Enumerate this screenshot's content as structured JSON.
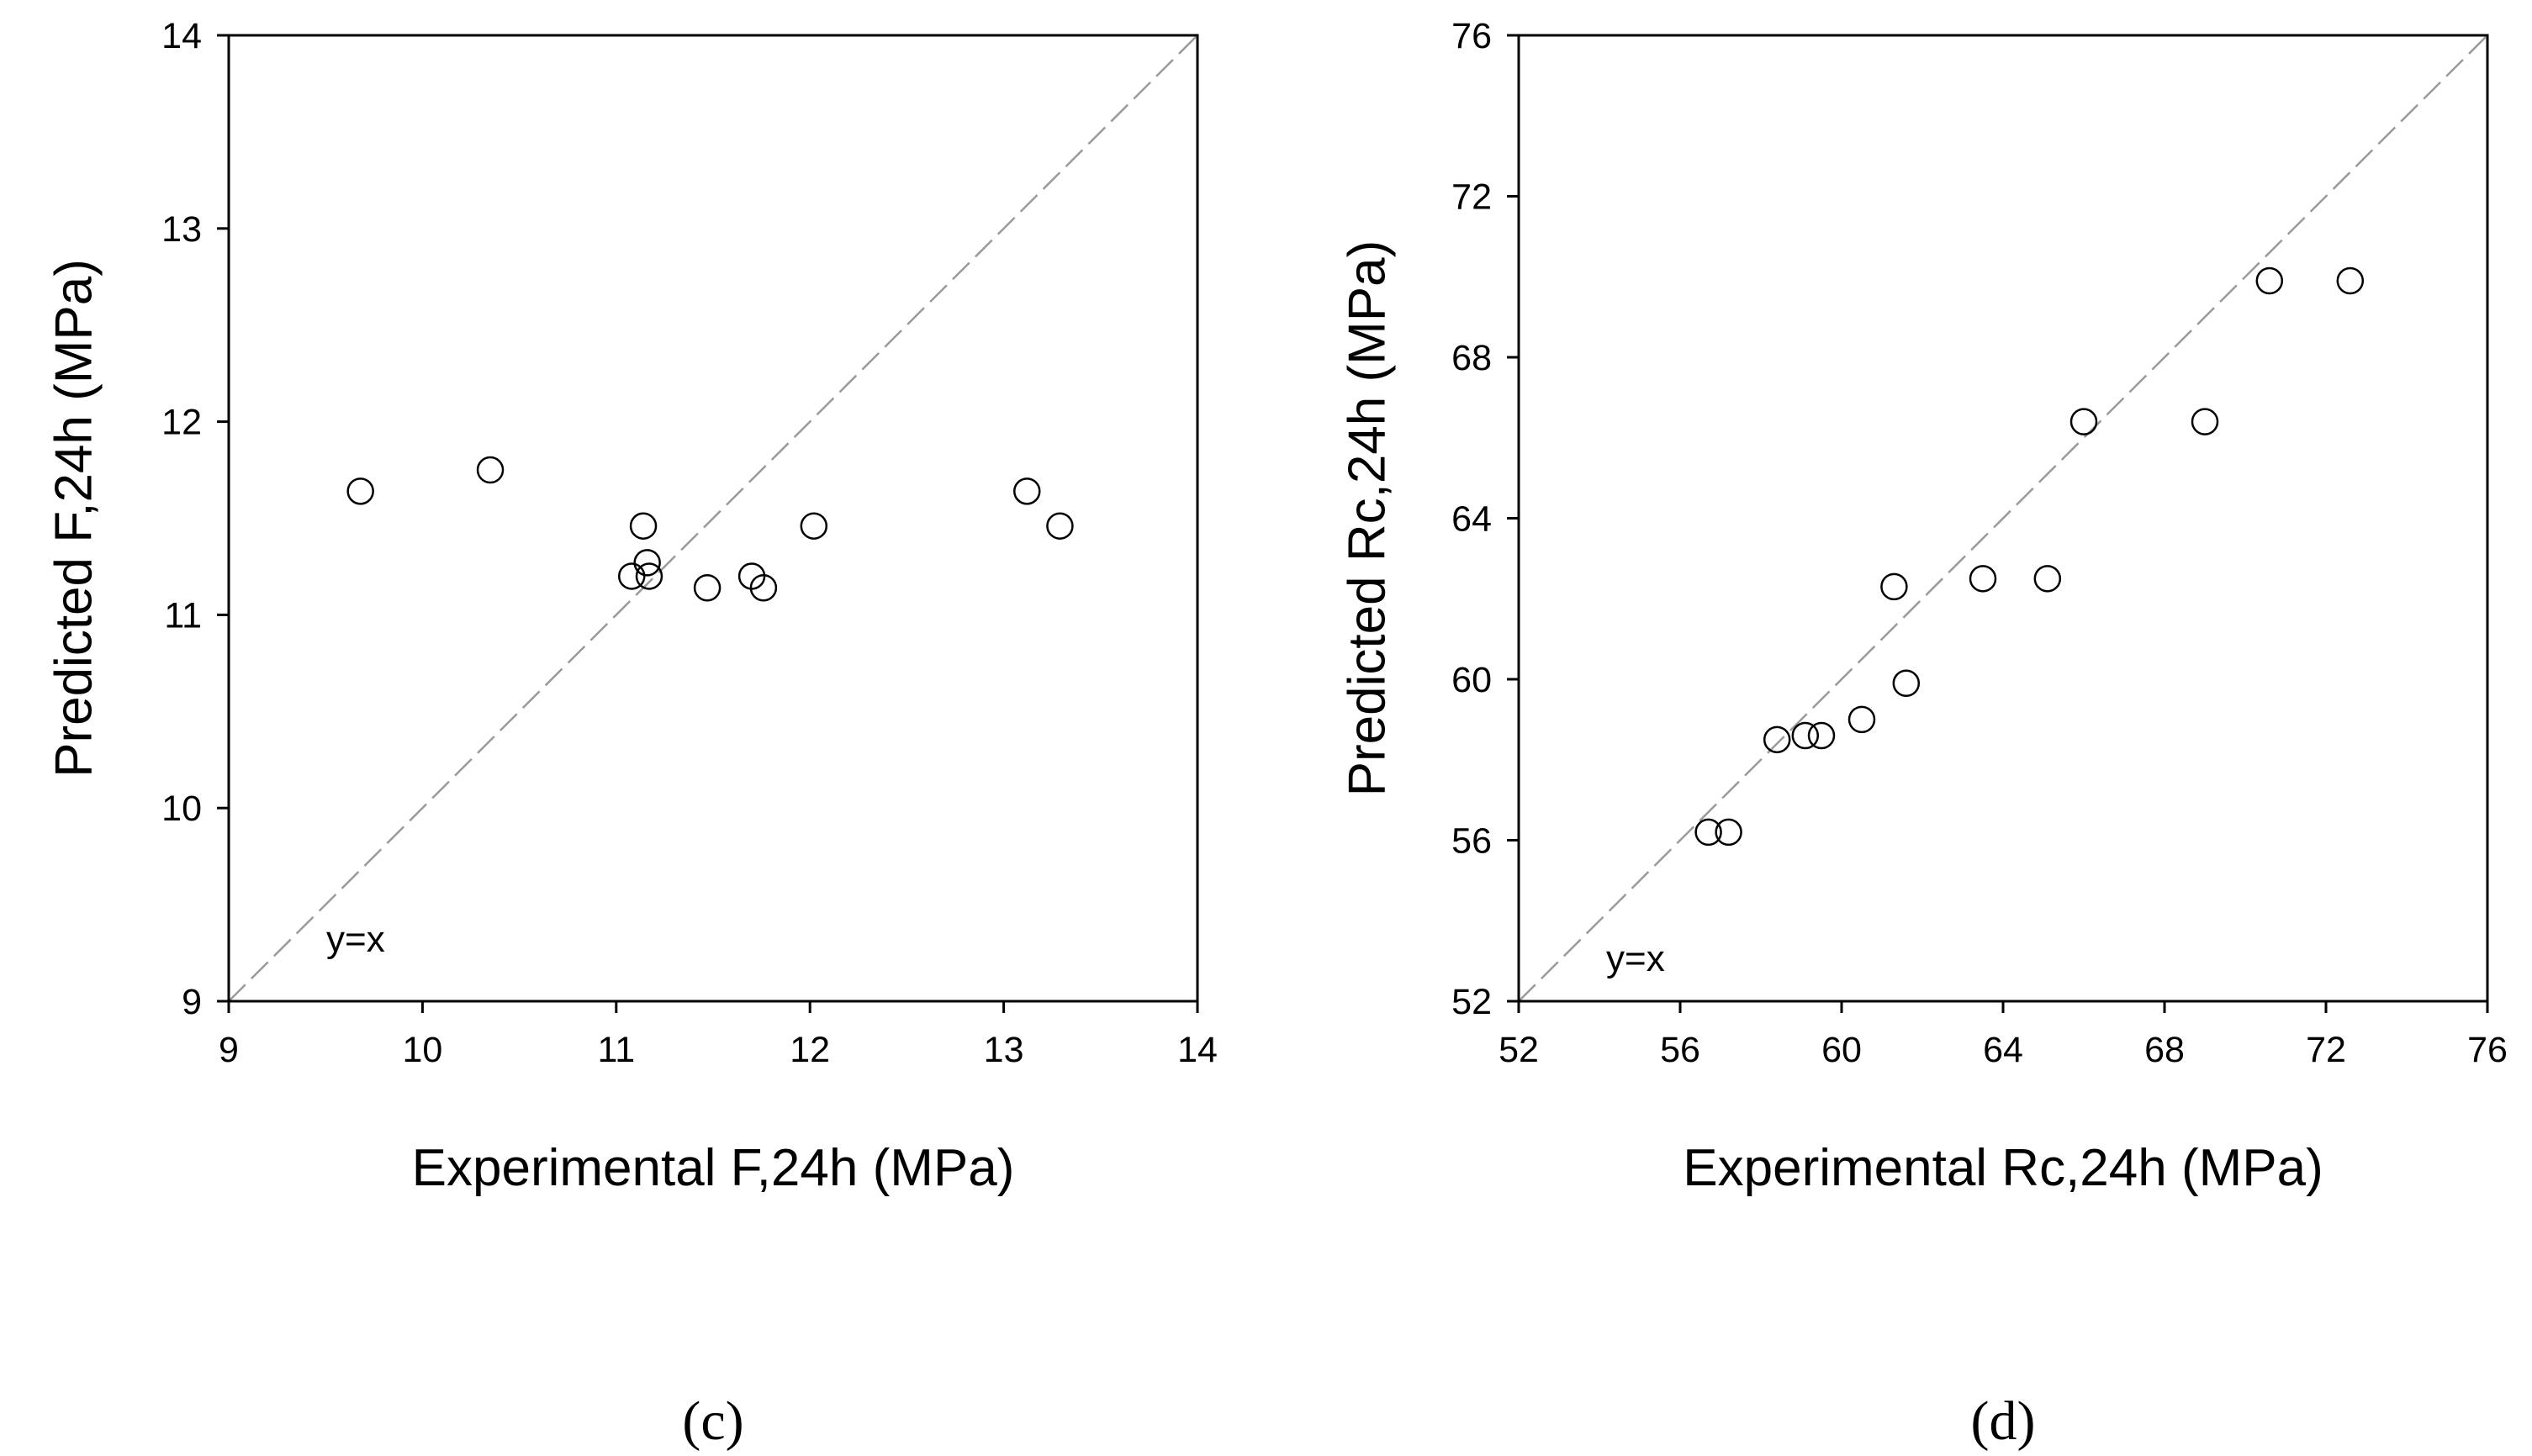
{
  "chart_data": [
    {
      "type": "scatter",
      "panel": "c",
      "panel_label": "(c)",
      "xlabel": "Experimental F,24h (MPa)",
      "ylabel": "Predicted F,24h (MPa)",
      "xlim": [
        9,
        14
      ],
      "ylim": [
        9,
        14
      ],
      "xticks": [
        9,
        10,
        11,
        12,
        13,
        14
      ],
      "yticks": [
        9,
        10,
        11,
        12,
        13,
        14
      ],
      "reference_line": "y=x",
      "annotation": "y=x",
      "grid": false,
      "points": [
        {
          "x": 9.68,
          "y": 11.64
        },
        {
          "x": 10.35,
          "y": 11.75
        },
        {
          "x": 11.08,
          "y": 11.2
        },
        {
          "x": 11.14,
          "y": 11.46
        },
        {
          "x": 11.16,
          "y": 11.27
        },
        {
          "x": 11.17,
          "y": 11.2
        },
        {
          "x": 11.47,
          "y": 11.14
        },
        {
          "x": 11.7,
          "y": 11.2
        },
        {
          "x": 11.76,
          "y": 11.14
        },
        {
          "x": 12.02,
          "y": 11.46
        },
        {
          "x": 13.12,
          "y": 11.64
        },
        {
          "x": 13.29,
          "y": 11.46
        }
      ]
    },
    {
      "type": "scatter",
      "panel": "d",
      "panel_label": "(d)",
      "xlabel": "Experimental Rc,24h (MPa)",
      "ylabel": "Predicted Rc,24h (MPa)",
      "xlim": [
        52,
        76
      ],
      "ylim": [
        52,
        76
      ],
      "xticks": [
        52,
        56,
        60,
        64,
        68,
        72,
        76
      ],
      "yticks": [
        52,
        56,
        60,
        64,
        68,
        72,
        76
      ],
      "reference_line": "y=x",
      "annotation": "y=x",
      "grid": false,
      "points": [
        {
          "x": 56.7,
          "y": 56.2
        },
        {
          "x": 57.2,
          "y": 56.2
        },
        {
          "x": 58.4,
          "y": 58.5
        },
        {
          "x": 59.1,
          "y": 58.6
        },
        {
          "x": 59.5,
          "y": 58.6
        },
        {
          "x": 60.5,
          "y": 59.0
        },
        {
          "x": 61.3,
          "y": 62.3
        },
        {
          "x": 61.6,
          "y": 59.9
        },
        {
          "x": 63.5,
          "y": 62.5
        },
        {
          "x": 65.1,
          "y": 62.5
        },
        {
          "x": 66.0,
          "y": 66.4
        },
        {
          "x": 69.0,
          "y": 66.4
        },
        {
          "x": 70.6,
          "y": 69.9
        },
        {
          "x": 72.6,
          "y": 69.9
        }
      ]
    }
  ]
}
